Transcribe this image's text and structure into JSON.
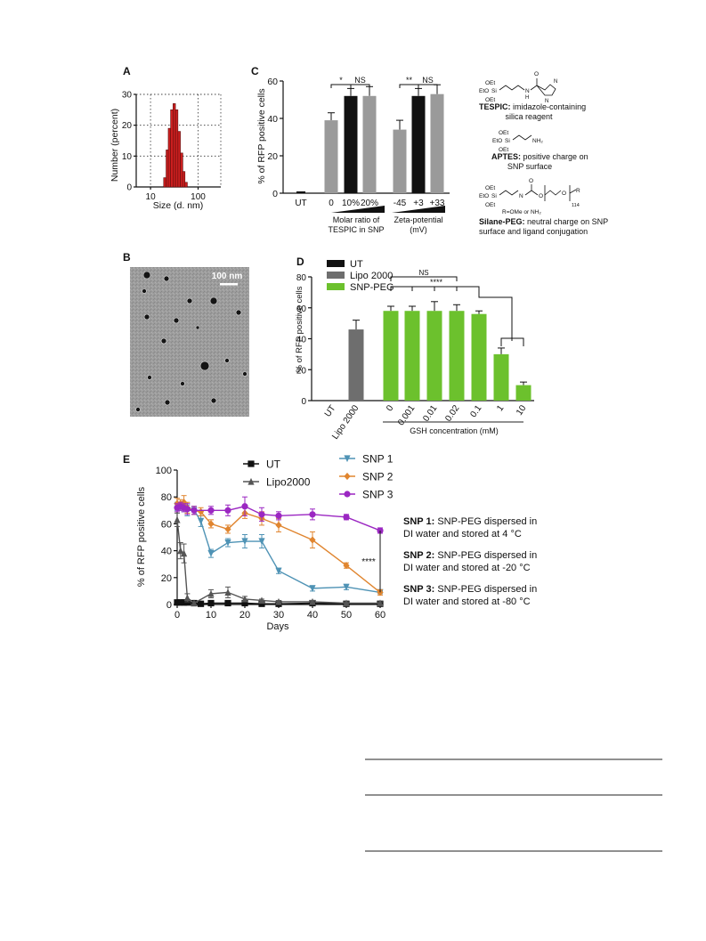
{
  "panels": {
    "A": {
      "letter": "A",
      "ylabel": "Number (percent)",
      "xlabel": "Size (d. nm)",
      "yticks": [
        "0",
        "10",
        "20",
        "30"
      ],
      "xticks": [
        "10",
        "100"
      ]
    },
    "B": {
      "letter": "B",
      "scalebar": "100 nm"
    },
    "C": {
      "letter": "C",
      "ylabel": "% of RFP positive cells",
      "yticks": [
        "0",
        "20",
        "40",
        "60"
      ],
      "groups": [
        "Molar ratio of TESPIC in SNP",
        "Zeta-potential (mV)"
      ],
      "group1_label_lines": [
        "Molar ratio of",
        "TESPIC in SNP"
      ],
      "group2_label_lines": [
        "Zeta-potential",
        "(mV)"
      ],
      "sig": [
        "*",
        "NS",
        "**",
        "NS"
      ],
      "chem": {
        "tespic_name": "TESPIC:",
        "tespic_desc1": "imidazole-containing",
        "tespic_desc2": "silica reagent",
        "aptes_name": "APTES:",
        "aptes_desc1": "positive charge on",
        "aptes_desc2": "SNP surface",
        "peg_name": "Silane-PEG:",
        "peg_desc1": "neutral charge on SNP",
        "peg_desc2": "surface and ligand conjugation",
        "peg_r": "R=OMe or NH₂"
      }
    },
    "D": {
      "letter": "D",
      "ylabel": "% of RFP positive cells",
      "yticks": [
        "0",
        "20",
        "40",
        "60",
        "80"
      ],
      "xlabel": "GSH concentration (mM)",
      "sig": [
        "NS",
        "****"
      ]
    },
    "E": {
      "letter": "E",
      "ylabel": "% of RFP positive cells",
      "xlabel": "Days",
      "yticks": [
        "0",
        "20",
        "40",
        "60",
        "80",
        "100"
      ],
      "xticks": [
        "0",
        "10",
        "20",
        "30",
        "40",
        "50",
        "60"
      ],
      "sig": "****",
      "notes": [
        {
          "name": "SNP 1:",
          "line1": "SNP-PEG dispersed in",
          "line2": "DI water and stored at 4 °C"
        },
        {
          "name": "SNP 2:",
          "line1": "SNP-PEG dispersed in",
          "line2": "DI water and stored at -20 °C"
        },
        {
          "name": "SNP 3:",
          "line1": "SNP-PEG dispersed in",
          "line2": "DI water and stored at -80 °C"
        }
      ]
    }
  },
  "colors": {
    "red": "#cc1f1f",
    "grey": "#9a9a9a",
    "darkgrey": "#6e6e6e",
    "black": "#111111",
    "green": "#6cc12d",
    "teal": "#4f93b5",
    "orange": "#e0852f",
    "purple": "#9b27c2"
  },
  "chart_data": [
    {
      "panel": "A",
      "type": "bar",
      "title": "",
      "xlabel": "Size (d. nm)",
      "ylabel": "Number (percent)",
      "xscale": "log",
      "xlim": [
        5,
        300
      ],
      "ylim": [
        0,
        30
      ],
      "x": [
        20,
        22.5,
        25,
        28,
        31.5,
        35.5,
        40,
        45,
        50,
        56
      ],
      "values": [
        3,
        12,
        19,
        25,
        27,
        25,
        18,
        11,
        5,
        1.5
      ]
    },
    {
      "panel": "C",
      "type": "bar",
      "ylabel": "% of RFP positive cells",
      "ylim": [
        0,
        60
      ],
      "categories": [
        "UT",
        "0",
        "10%",
        "20%",
        "-45",
        "+3",
        "+33"
      ],
      "values": [
        0.5,
        39,
        52,
        52,
        34,
        52,
        53
      ],
      "errors": [
        0.3,
        4,
        4,
        5,
        5,
        4,
        5
      ],
      "bar_colors": [
        "#111111",
        "#9a9a9a",
        "#111111",
        "#9a9a9a",
        "#9a9a9a",
        "#111111",
        "#9a9a9a"
      ]
    },
    {
      "panel": "D",
      "type": "bar",
      "ylabel": "% of RFP positive cells",
      "xlabel": "GSH concentration (mM)",
      "ylim": [
        0,
        80
      ],
      "legend": [
        "UT",
        "Lipo 2000",
        "SNP-PEG"
      ],
      "categories": [
        "UT",
        "Lipo 2000",
        "0",
        "0.001",
        "0.01",
        "0.02",
        "0.1",
        "1",
        "10"
      ],
      "values": [
        0,
        46,
        58,
        58,
        58,
        58,
        56,
        30,
        10
      ],
      "errors": [
        0,
        6,
        3,
        3,
        6,
        4,
        2,
        4,
        2
      ],
      "bar_colors": [
        "#111111",
        "#6e6e6e",
        "#6cc12d",
        "#6cc12d",
        "#6cc12d",
        "#6cc12d",
        "#6cc12d",
        "#6cc12d",
        "#6cc12d"
      ]
    },
    {
      "panel": "E",
      "type": "line",
      "xlabel": "Days",
      "ylabel": "% of RFP positive cells",
      "xlim": [
        0,
        60
      ],
      "ylim": [
        0,
        100
      ],
      "series": [
        {
          "name": "UT",
          "color": "#111111",
          "marker": "square",
          "x": [
            0,
            1,
            2,
            3,
            5,
            7,
            10,
            15,
            20,
            25,
            30,
            40,
            50,
            60
          ],
          "y": [
            1.5,
            1.5,
            1.5,
            1.5,
            1,
            0.5,
            1,
            1,
            1,
            0.5,
            0.5,
            1,
            0.5,
            0.5
          ],
          "err": [
            1,
            1,
            1,
            1,
            0.5,
            0.5,
            0.5,
            0.5,
            0.5,
            0.5,
            0.5,
            0.5,
            0.5,
            0.5
          ]
        },
        {
          "name": "Lipo2000",
          "color": "#555555",
          "marker": "triangle",
          "x": [
            0,
            1,
            2,
            3,
            5,
            10,
            15,
            20,
            25,
            30,
            40,
            50,
            60
          ],
          "y": [
            63,
            40,
            38,
            5,
            1,
            8,
            9,
            4,
            3,
            2,
            2,
            1,
            1
          ],
          "err": [
            5,
            6,
            7,
            3,
            1,
            3,
            4,
            2,
            1,
            1,
            1,
            1,
            1
          ]
        },
        {
          "name": "SNP 1",
          "color": "#4f93b5",
          "marker": "triangle-down",
          "x": [
            0,
            1,
            2,
            3,
            5,
            7,
            10,
            15,
            20,
            25,
            30,
            40,
            50,
            60
          ],
          "y": [
            73,
            73,
            72,
            70,
            70,
            62,
            38,
            46,
            47,
            47,
            25,
            12,
            13,
            9
          ],
          "err": [
            3,
            3,
            3,
            4,
            3,
            4,
            3,
            3,
            5,
            5,
            2,
            2,
            2,
            1
          ]
        },
        {
          "name": "SNP 2",
          "color": "#e0852f",
          "marker": "diamond",
          "x": [
            0,
            1,
            2,
            3,
            5,
            7,
            10,
            15,
            20,
            25,
            30,
            40,
            50,
            60
          ],
          "y": [
            75,
            75,
            76,
            72,
            70,
            69,
            60,
            56,
            68,
            64,
            59,
            48,
            29,
            9
          ],
          "err": [
            4,
            3,
            5,
            4,
            3,
            3,
            3,
            3,
            4,
            5,
            5,
            6,
            2,
            2
          ]
        },
        {
          "name": "SNP 3",
          "color": "#9b27c2",
          "marker": "circle",
          "x": [
            0,
            1,
            2,
            3,
            5,
            10,
            15,
            20,
            25,
            30,
            40,
            50,
            60
          ],
          "y": [
            72,
            73,
            72,
            71,
            70,
            70,
            70,
            73,
            67,
            66,
            67,
            65,
            55
          ],
          "err": [
            3,
            3,
            3,
            4,
            3,
            3,
            4,
            7,
            5,
            3,
            4,
            2,
            2
          ]
        }
      ]
    }
  ]
}
